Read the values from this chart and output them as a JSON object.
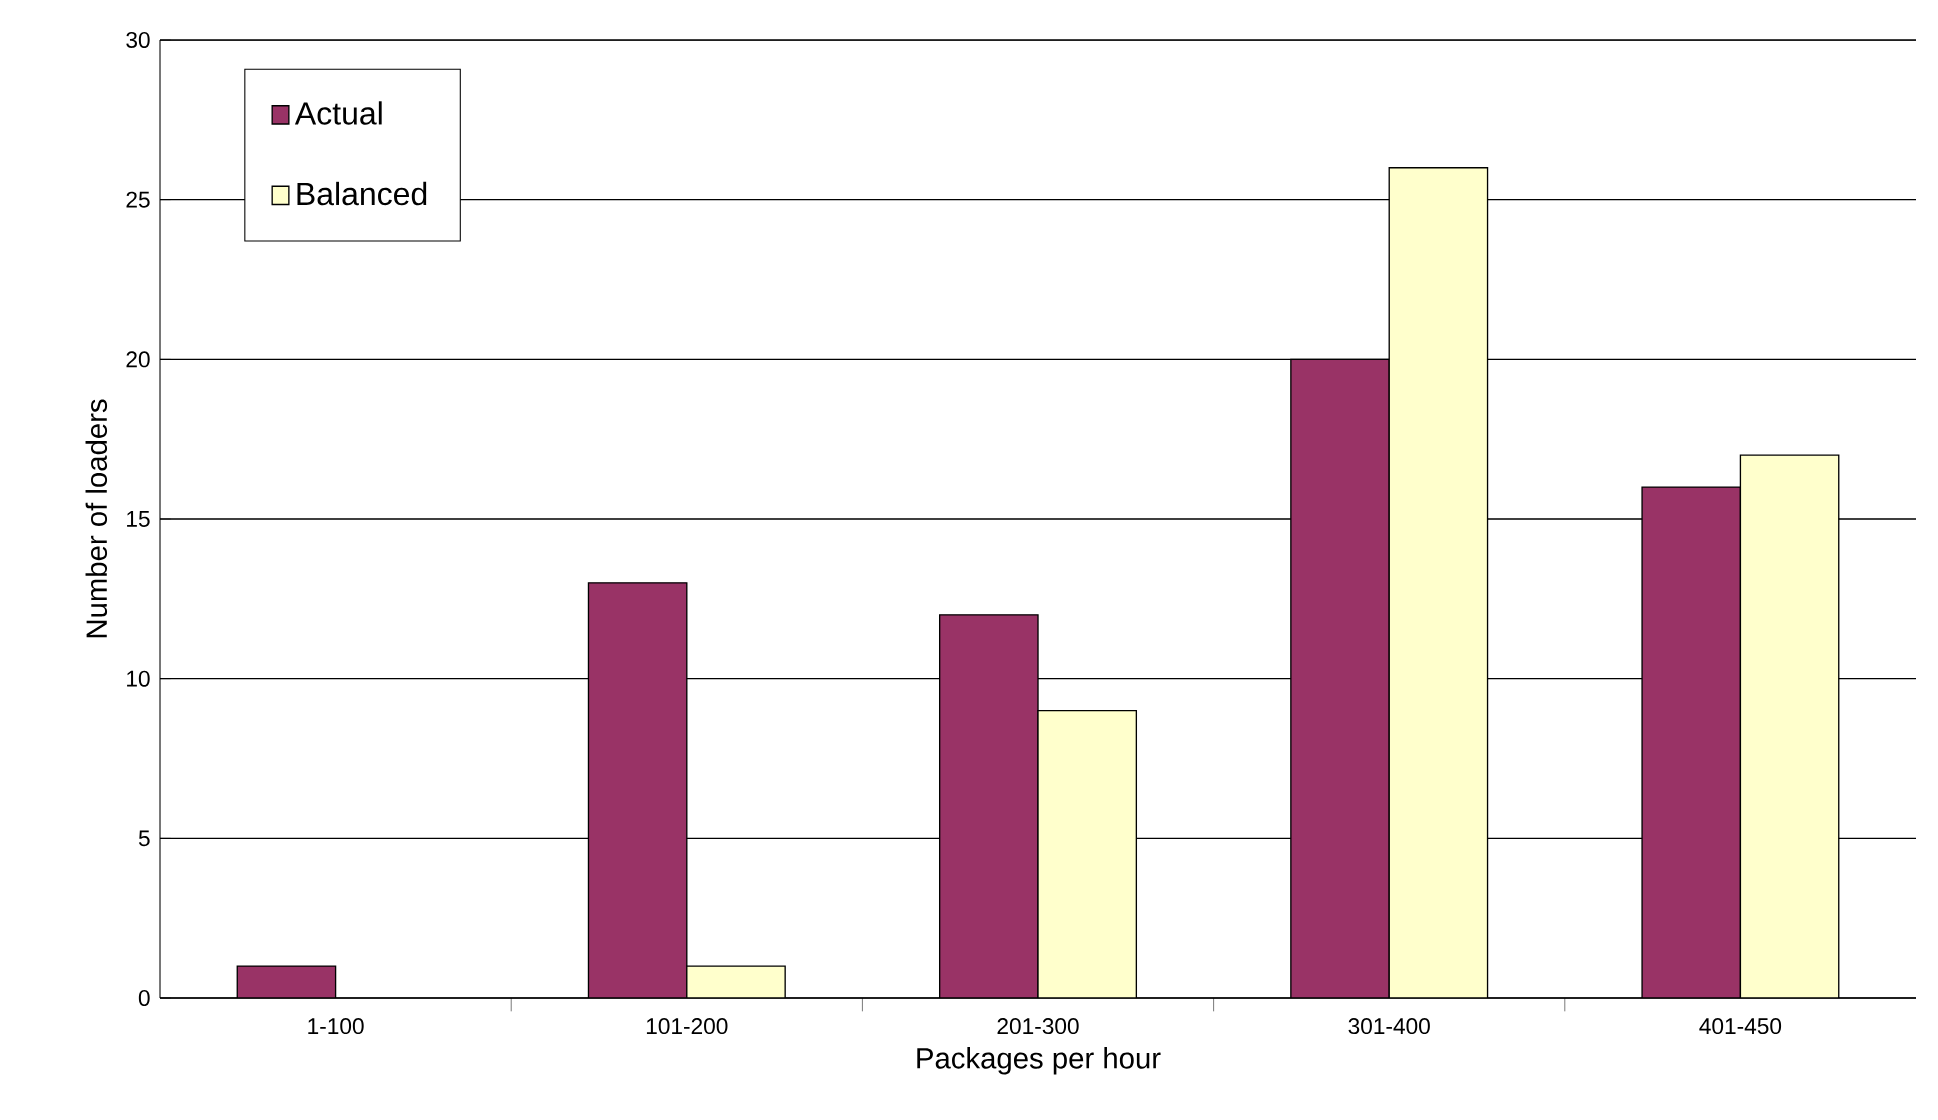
{
  "chart_data": {
    "type": "bar",
    "xlabel": "Packages per hour",
    "ylabel": "Number of loaders",
    "categories": [
      "1-100",
      "101-200",
      "201-300",
      "301-400",
      "401-450"
    ],
    "series": [
      {
        "name": "Actual",
        "color": "#993366",
        "values": [
          1,
          13,
          12,
          20,
          16
        ]
      },
      {
        "name": "Balanced",
        "color": "#ffffcc",
        "values": [
          null,
          1,
          9,
          26,
          17
        ]
      }
    ],
    "ylim": [
      0,
      30
    ],
    "yticks": [
      0,
      5,
      10,
      15,
      20,
      25,
      30
    ],
    "grid": "y",
    "legend": "top left"
  }
}
